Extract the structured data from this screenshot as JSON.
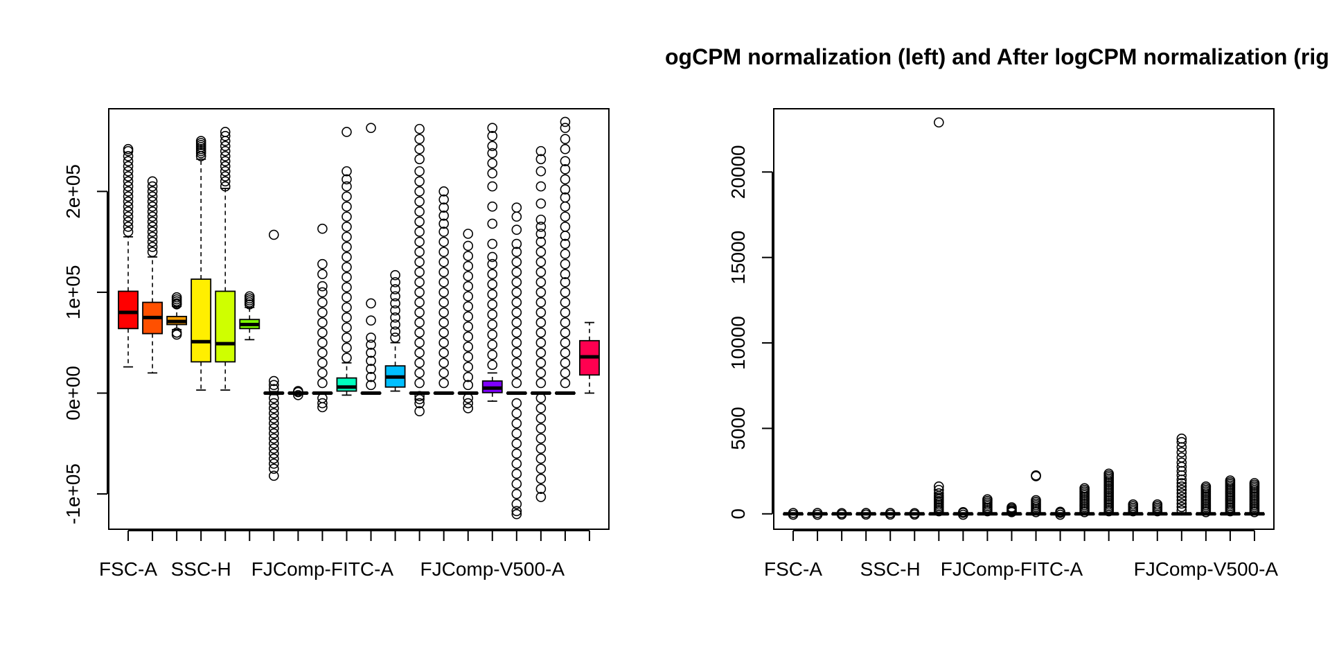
{
  "figure": {
    "title": "ogCPM normalization (left) and After logCPM normalization (right)"
  },
  "chart_data": [
    {
      "type": "boxplot",
      "panel": "left",
      "xlabel": "",
      "ylabel": "",
      "ylim": [
        -135000,
        282000
      ],
      "yticks": [
        -100000,
        0,
        100000,
        200000
      ],
      "ytick_labels": [
        "-1e+05",
        "0e+00",
        "1e+05",
        "2e+05"
      ],
      "x_tick_labels": [
        "FSC-A",
        "",
        "",
        "SSC-H",
        "",
        "",
        "",
        "",
        "FJComp-FITC-A",
        "",
        "",
        "",
        "",
        "",
        "",
        "FJComp-V500-A",
        "",
        "",
        "",
        ""
      ],
      "shown_x_labels": [
        "FSC-A",
        "SSC-H",
        "FJComp-FITC-A",
        "FJComp-V500-A"
      ],
      "boxes": [
        {
          "q1": 64000,
          "median": 80000,
          "q3": 101000,
          "wlo": 26000,
          "whi": 155000,
          "color": "#FF0000",
          "out": [
            242000,
            240000,
            235000,
            230000,
            225000,
            220000,
            215000,
            210000,
            205000,
            200000,
            195000,
            190000,
            185000,
            180000,
            175000,
            170000,
            165000,
            160000
          ]
        },
        {
          "q1": 59000,
          "median": 75000,
          "q3": 90000,
          "wlo": 20000,
          "whi": 135000,
          "color": "#FF5000",
          "out": [
            210000,
            205000,
            200000,
            195000,
            190000,
            185000,
            180000,
            175000,
            170000,
            165000,
            160000,
            155000,
            150000,
            145000,
            140000
          ]
        },
        {
          "q1": 68000,
          "median": 71000,
          "q3": 76000,
          "wlo": 63000,
          "whi": 86000,
          "color": "#FF9F00",
          "out": [
            58000,
            60000,
            95000,
            93000,
            91000,
            89000,
            88000
          ]
        },
        {
          "q1": 31000,
          "median": 51000,
          "q3": 113000,
          "wlo": 3000,
          "whi": 232000,
          "color": "#FFEF00",
          "out": [
            235000,
            238000,
            240000,
            242000,
            244000,
            246000,
            248000,
            250000
          ]
        },
        {
          "q1": 31000,
          "median": 49000,
          "q3": 101000,
          "wlo": 3000,
          "whi": 203000,
          "color": "#CFFF00",
          "out": [
            205000,
            210000,
            215000,
            220000,
            225000,
            230000,
            235000,
            240000,
            245000,
            250000,
            255000,
            259000
          ]
        },
        {
          "q1": 64000,
          "median": 68000,
          "q3": 73000,
          "wlo": 53000,
          "whi": 85000,
          "color": "#7FFF00",
          "out": [
            88000,
            90000,
            92000,
            94000,
            96000
          ]
        },
        {
          "q1": -500,
          "median": 0,
          "q3": 500,
          "wlo": -1500,
          "whi": 1500,
          "color": "#2FFF00",
          "out": [
            157000,
            12000,
            8000,
            4000,
            -5000,
            -10000,
            -15000,
            -20000,
            -25000,
            -30000,
            -35000,
            -40000,
            -45000,
            -50000,
            -55000,
            -60000,
            -65000,
            -70000,
            -75000,
            -82000
          ]
        },
        {
          "q1": -300,
          "median": 0,
          "q3": 300,
          "wlo": -800,
          "whi": 800,
          "color": "#00FF20",
          "out": [
            2000,
            -2000,
            1000
          ]
        },
        {
          "q1": -300,
          "median": 0,
          "q3": 300,
          "wlo": -800,
          "whi": 800,
          "color": "#00FF70",
          "out": [
            163000,
            128000,
            118000,
            106000,
            100000,
            90000,
            80000,
            70000,
            60000,
            50000,
            40000,
            30000,
            20000,
            10000,
            -5000,
            -10000,
            -14000
          ]
        },
        {
          "q1": 2000,
          "median": 6000,
          "q3": 15000,
          "wlo": -2000,
          "whi": 30000,
          "color": "#00FFBF",
          "out": [
            259000,
            220000,
            212000,
            205000,
            195000,
            185000,
            175000,
            165000,
            155000,
            145000,
            135000,
            125000,
            115000,
            105000,
            95000,
            85000,
            75000,
            65000,
            55000,
            45000,
            35000
          ]
        },
        {
          "q1": -300,
          "median": 0,
          "q3": 300,
          "wlo": -800,
          "whi": 800,
          "color": "#00FFFF",
          "out": [
            263000,
            89000,
            72000,
            55000,
            48000,
            40000,
            32000,
            24000,
            16000,
            8000
          ]
        },
        {
          "q1": 6000,
          "median": 16000,
          "q3": 27000,
          "wlo": 2000,
          "whi": 50000,
          "color": "#00BFFF",
          "out": [
            117000,
            110000,
            103000,
            96000,
            89000,
            82000,
            75000,
            68000,
            61000,
            55000
          ]
        },
        {
          "q1": -300,
          "median": 0,
          "q3": 300,
          "wlo": -800,
          "whi": 800,
          "color": "#0070FF",
          "out": [
            262000,
            252000,
            242000,
            232000,
            220000,
            210000,
            200000,
            190000,
            180000,
            170000,
            160000,
            150000,
            140000,
            130000,
            120000,
            110000,
            100000,
            90000,
            80000,
            70000,
            60000,
            50000,
            40000,
            30000,
            20000,
            10000,
            -3000,
            -6000,
            -10000,
            -18000
          ]
        },
        {
          "q1": -300,
          "median": 0,
          "q3": 300,
          "wlo": -800,
          "whi": 800,
          "color": "#0020FF",
          "out": [
            200000,
            192000,
            184000,
            176000,
            168000,
            160000,
            150000,
            140000,
            130000,
            120000,
            110000,
            100000,
            90000,
            80000,
            70000,
            60000,
            50000,
            40000,
            30000,
            20000,
            10000
          ]
        },
        {
          "q1": -300,
          "median": 0,
          "q3": 300,
          "wlo": -800,
          "whi": 800,
          "color": "#2F00FF",
          "out": [
            158000,
            146000,
            136000,
            126000,
            116000,
            106000,
            96000,
            86000,
            76000,
            66000,
            56000,
            46000,
            36000,
            26000,
            16000,
            8000,
            -5000,
            -10000,
            -15000
          ]
        },
        {
          "q1": 500,
          "median": 5000,
          "q3": 12000,
          "wlo": -8000,
          "whi": 20000,
          "color": "#7F00FF",
          "out": [
            263000,
            255000,
            245000,
            238000,
            228000,
            218000,
            205000,
            185000,
            168000,
            148000,
            135000,
            128000,
            118000,
            108000,
            98000,
            88000,
            78000,
            68000,
            58000,
            48000,
            38000,
            28000
          ]
        },
        {
          "q1": -300,
          "median": 0,
          "q3": 300,
          "wlo": -800,
          "whi": 800,
          "color": "#CF00FF",
          "out": [
            184000,
            175000,
            162000,
            148000,
            140000,
            130000,
            120000,
            110000,
            100000,
            90000,
            80000,
            70000,
            60000,
            50000,
            40000,
            30000,
            20000,
            10000,
            -10000,
            -20000,
            -30000,
            -40000,
            -50000,
            -60000,
            -70000,
            -80000,
            -90000,
            -100000,
            -110000,
            -117000,
            -120000
          ]
        },
        {
          "q1": -300,
          "median": 0,
          "q3": 300,
          "wlo": -800,
          "whi": 800,
          "color": "#FF00EF",
          "out": [
            240000,
            232000,
            220000,
            205000,
            188000,
            172000,
            165000,
            158000,
            150000,
            140000,
            130000,
            120000,
            110000,
            100000,
            90000,
            80000,
            70000,
            60000,
            50000,
            40000,
            30000,
            20000,
            10000,
            -5000,
            -15000,
            -25000,
            -35000,
            -45000,
            -55000,
            -65000,
            -75000,
            -85000,
            -95000,
            -103000
          ]
        },
        {
          "q1": -300,
          "median": 0,
          "q3": 300,
          "wlo": -800,
          "whi": 800,
          "color": "#FF009F",
          "out": [
            269000,
            263000,
            252000,
            242000,
            230000,
            222000,
            212000,
            202000,
            194000,
            185000,
            175000,
            165000,
            156000,
            148000,
            138000,
            128000,
            118000,
            110000,
            100000,
            90000,
            80000,
            70000,
            60000,
            50000,
            40000,
            30000,
            20000,
            10000
          ]
        },
        {
          "q1": 18000,
          "median": 36000,
          "q3": 52000,
          "wlo": 0,
          "whi": 70000,
          "color": "#FF0050",
          "out": []
        }
      ]
    },
    {
      "type": "boxplot",
      "panel": "right",
      "xlabel": "",
      "ylabel": "",
      "ylim": [
        -900,
        23700
      ],
      "yticks": [
        0,
        5000,
        10000,
        15000,
        20000
      ],
      "ytick_labels": [
        "0",
        "5000",
        "10000",
        "15000",
        "20000"
      ],
      "x_tick_labels": [
        "FSC-A",
        "",
        "",
        "",
        "SSC-H",
        "",
        "",
        "",
        "",
        "FJComp-FITC-A",
        "",
        "",
        "",
        "",
        "",
        "",
        "",
        "FJComp-V500-A",
        "",
        ""
      ],
      "shown_x_labels": [
        "FSC-A",
        "SSC-H",
        "FJComp-FITC-A",
        "FJComp-V500-A"
      ],
      "boxes": [
        {
          "q1": -5,
          "median": 0,
          "q3": 5,
          "wlo": -30,
          "whi": 30,
          "color": "#FF0000",
          "out": [
            50,
            -50
          ]
        },
        {
          "q1": -5,
          "median": 0,
          "q3": 5,
          "wlo": -30,
          "whi": 30,
          "color": "#FF5000",
          "out": [
            50,
            -50
          ]
        },
        {
          "q1": -5,
          "median": 0,
          "q3": 5,
          "wlo": -30,
          "whi": 30,
          "color": "#FF9F00",
          "out": [
            40,
            -40
          ]
        },
        {
          "q1": -5,
          "median": 0,
          "q3": 5,
          "wlo": -30,
          "whi": 30,
          "color": "#FFEF00",
          "out": [
            50,
            -40
          ]
        },
        {
          "q1": -5,
          "median": 0,
          "q3": 5,
          "wlo": -30,
          "whi": 30,
          "color": "#CFFF00",
          "out": [
            50,
            -40
          ]
        },
        {
          "q1": -5,
          "median": 0,
          "q3": 5,
          "wlo": -30,
          "whi": 30,
          "color": "#7FFF00",
          "out": [
            40,
            -40
          ]
        },
        {
          "q1": -5,
          "median": 0,
          "q3": 5,
          "wlo": -30,
          "whi": 30,
          "color": "#2FFF00",
          "out": [
            22900,
            1600,
            1400,
            1200,
            1050,
            950,
            850,
            750,
            650,
            550,
            450,
            350,
            250,
            150
          ]
        },
        {
          "q1": -5,
          "median": 0,
          "q3": 5,
          "wlo": -30,
          "whi": 30,
          "color": "#00FF20",
          "out": [
            100,
            60,
            -50
          ]
        },
        {
          "q1": -5,
          "median": 0,
          "q3": 5,
          "wlo": -30,
          "whi": 30,
          "color": "#00FF70",
          "out": [
            850,
            750,
            650,
            550,
            450,
            350,
            250,
            150
          ]
        },
        {
          "q1": -5,
          "median": 0,
          "q3": 5,
          "wlo": -30,
          "whi": 30,
          "color": "#00FFBF",
          "out": [
            380,
            300,
            220,
            150,
            100
          ]
        },
        {
          "q1": -5,
          "median": 0,
          "q3": 5,
          "wlo": -30,
          "whi": 30,
          "color": "#00FFFF",
          "out": [
            2250,
            2200,
            800,
            700,
            600,
            500,
            400,
            300,
            200,
            100
          ]
        },
        {
          "q1": -5,
          "median": 0,
          "q3": 5,
          "wlo": -30,
          "whi": 30,
          "color": "#00BFFF",
          "out": [
            120,
            60,
            -50
          ]
        },
        {
          "q1": -5,
          "median": 0,
          "q3": 5,
          "wlo": -30,
          "whi": 30,
          "color": "#0070FF",
          "out": [
            1500,
            1400,
            1300,
            1200,
            1100,
            1000,
            900,
            800,
            700,
            600,
            500,
            400,
            300,
            200,
            100
          ]
        },
        {
          "q1": -5,
          "median": 0,
          "q3": 5,
          "wlo": -30,
          "whi": 30,
          "color": "#0020FF",
          "out": [
            2350,
            2250,
            2150,
            2050,
            1950,
            1850,
            1750,
            1650,
            1550,
            1450,
            1350,
            1250,
            1150,
            1050,
            950,
            850,
            750,
            650,
            550,
            450,
            350,
            250,
            150
          ]
        },
        {
          "q1": -5,
          "median": 0,
          "q3": 5,
          "wlo": -30,
          "whi": 30,
          "color": "#2F00FF",
          "out": [
            550,
            450,
            350,
            250,
            150
          ]
        },
        {
          "q1": -5,
          "median": 0,
          "q3": 5,
          "wlo": -30,
          "whi": 30,
          "color": "#7F00FF",
          "out": [
            550,
            450,
            350,
            250,
            150
          ]
        },
        {
          "q1": -5,
          "median": 0,
          "q3": 5,
          "wlo": -30,
          "whi": 30,
          "color": "#CF00FF",
          "out": [
            4400,
            4200,
            3900,
            3600,
            3300,
            3000,
            2750,
            2500,
            2250,
            2000,
            1800,
            1600,
            1400,
            1200,
            1000,
            800,
            600,
            400,
            200
          ]
        },
        {
          "q1": -5,
          "median": 0,
          "q3": 5,
          "wlo": -30,
          "whi": 30,
          "color": "#FF00EF",
          "out": [
            1600,
            1500,
            1400,
            1300,
            1200,
            1100,
            1000,
            900,
            800,
            700,
            600,
            500,
            400,
            300,
            200,
            100
          ]
        },
        {
          "q1": -5,
          "median": 0,
          "q3": 5,
          "wlo": -30,
          "whi": 30,
          "color": "#FF009F",
          "out": [
            1950,
            1850,
            1750,
            1650,
            1550,
            1450,
            1350,
            1250,
            1150,
            1050,
            950,
            850,
            750,
            650,
            550,
            450,
            350,
            250,
            150
          ]
        },
        {
          "q1": -5,
          "median": 0,
          "q3": 5,
          "wlo": -30,
          "whi": 30,
          "color": "#FF0050",
          "out": [
            1800,
            1700,
            1600,
            1500,
            1400,
            1300,
            1200,
            1100,
            1000,
            900,
            800,
            700,
            600,
            500,
            400,
            300,
            200,
            100
          ]
        }
      ]
    }
  ]
}
